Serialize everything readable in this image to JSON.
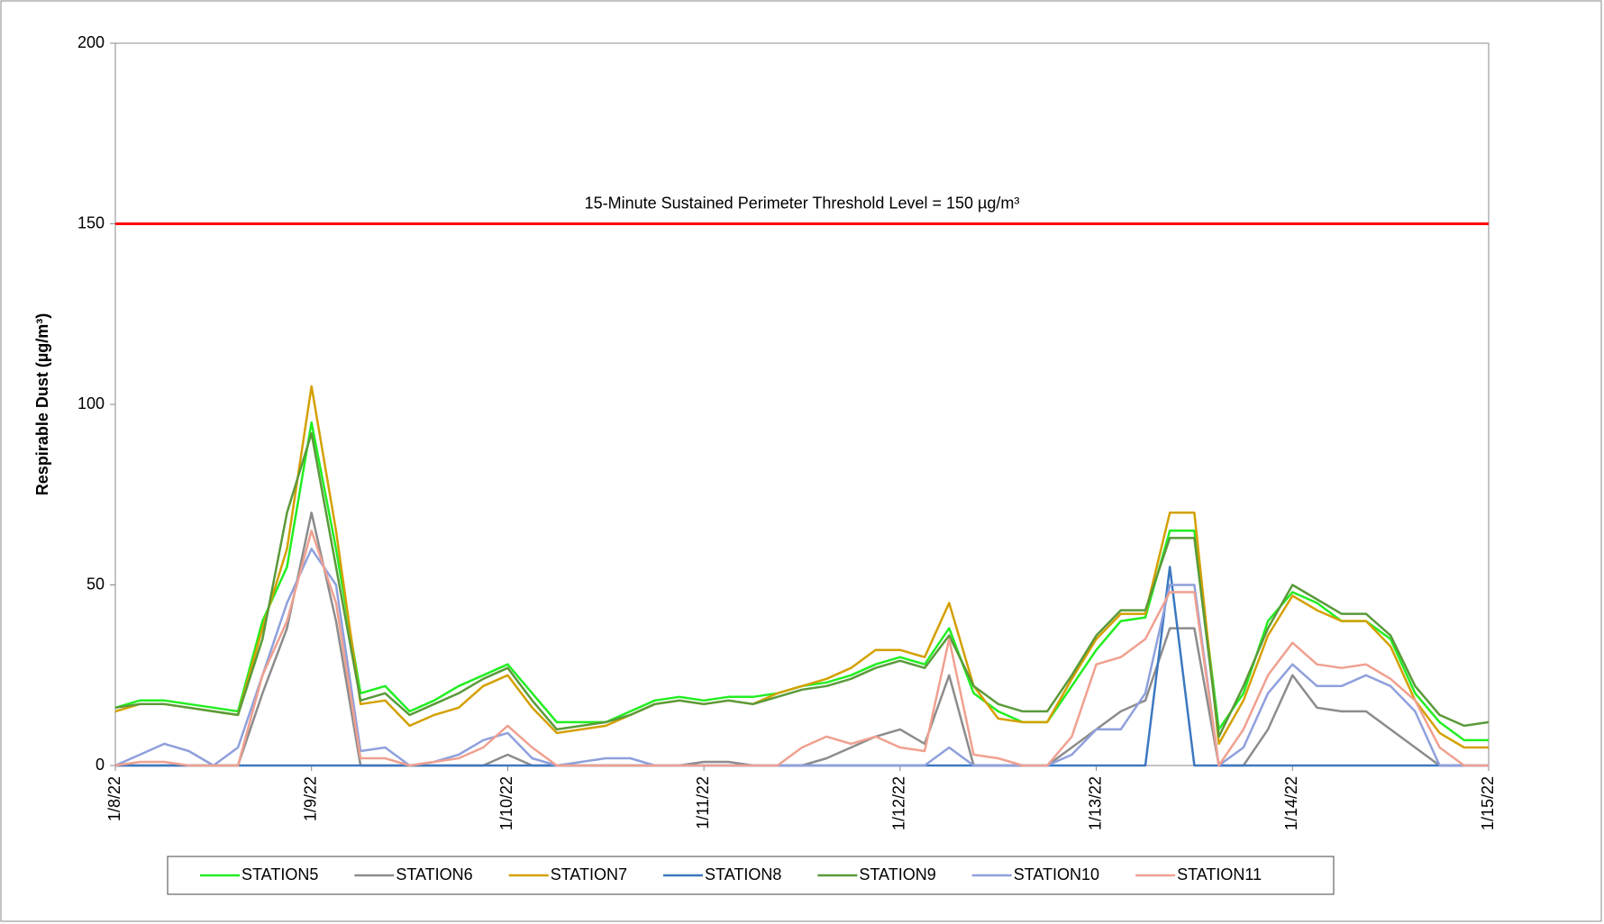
{
  "chart_data": {
    "type": "line",
    "y_label": "Respirable Dust (µg/m³)",
    "threshold": {
      "value": 150,
      "label": "15-Minute Sustained Perimeter Threshold Level = 150 µg/m³",
      "color": "#ff0000"
    },
    "ylim": [
      0,
      200
    ],
    "yticks": [
      0,
      50,
      100,
      150,
      200
    ],
    "categories": [
      "1/8/22",
      null,
      null,
      null,
      null,
      null,
      null,
      null,
      "1/9/22",
      null,
      null,
      null,
      null,
      null,
      null,
      null,
      "1/10/22",
      null,
      null,
      null,
      null,
      null,
      null,
      null,
      "1/11/22",
      null,
      null,
      null,
      null,
      null,
      null,
      null,
      "1/12/22",
      null,
      null,
      null,
      null,
      null,
      null,
      null,
      "1/13/22",
      null,
      null,
      null,
      null,
      null,
      null,
      null,
      "1/14/22",
      null,
      null,
      null,
      null,
      null,
      null,
      null,
      "1/15/22"
    ],
    "series": [
      {
        "name": "STATION5",
        "color": "#22ee22",
        "values": [
          16,
          18,
          18,
          17,
          16,
          15,
          40,
          55,
          95,
          60,
          20,
          22,
          15,
          18,
          22,
          25,
          28,
          20,
          12,
          12,
          12,
          15,
          18,
          19,
          18,
          19,
          19,
          20,
          22,
          23,
          25,
          28,
          30,
          28,
          38,
          20,
          15,
          12,
          12,
          22,
          32,
          40,
          41,
          65,
          65,
          10,
          20,
          40,
          48,
          45,
          40,
          40,
          35,
          20,
          12,
          7,
          7
        ]
      },
      {
        "name": "STATION6",
        "color": "#8c8c8c",
        "values": [
          0,
          0,
          0,
          0,
          0,
          0,
          20,
          38,
          70,
          40,
          0,
          0,
          0,
          0,
          0,
          0,
          3,
          0,
          0,
          0,
          0,
          0,
          0,
          0,
          1,
          1,
          0,
          0,
          0,
          2,
          5,
          8,
          10,
          6,
          25,
          0,
          0,
          0,
          0,
          5,
          10,
          15,
          18,
          38,
          38,
          0,
          0,
          10,
          25,
          16,
          15,
          15,
          10,
          5,
          0,
          0,
          0
        ]
      },
      {
        "name": "STATION7",
        "color": "#d4a000",
        "values": [
          15,
          17,
          17,
          16,
          15,
          14,
          38,
          60,
          105,
          65,
          17,
          18,
          11,
          14,
          16,
          22,
          25,
          16,
          9,
          10,
          11,
          14,
          17,
          18,
          17,
          18,
          17,
          20,
          22,
          24,
          27,
          32,
          32,
          30,
          45,
          22,
          13,
          12,
          12,
          24,
          35,
          42,
          42,
          70,
          70,
          6,
          18,
          36,
          47,
          43,
          40,
          40,
          33,
          18,
          9,
          5,
          5
        ]
      },
      {
        "name": "STATION8",
        "color": "#3c78c0",
        "values": [
          0,
          0,
          0,
          0,
          0,
          0,
          0,
          0,
          0,
          0,
          0,
          0,
          0,
          0,
          0,
          0,
          0,
          0,
          0,
          0,
          0,
          0,
          0,
          0,
          0,
          0,
          0,
          0,
          0,
          0,
          0,
          0,
          0,
          0,
          0,
          0,
          0,
          0,
          0,
          0,
          0,
          0,
          0,
          55,
          0,
          0,
          0,
          0,
          0,
          0,
          0,
          0,
          0,
          0,
          0,
          0,
          0
        ]
      },
      {
        "name": "STATION9",
        "color": "#5a9a3a",
        "values": [
          16,
          17,
          17,
          16,
          15,
          14,
          35,
          70,
          92,
          55,
          18,
          20,
          14,
          17,
          20,
          24,
          27,
          18,
          10,
          11,
          12,
          14,
          17,
          18,
          17,
          18,
          17,
          19,
          21,
          22,
          24,
          27,
          29,
          27,
          36,
          22,
          17,
          15,
          15,
          25,
          36,
          43,
          43,
          63,
          63,
          8,
          22,
          38,
          50,
          46,
          42,
          42,
          36,
          22,
          14,
          11,
          12
        ]
      },
      {
        "name": "STATION10",
        "color": "#8fa0dc",
        "values": [
          0,
          3,
          6,
          4,
          0,
          5,
          25,
          45,
          60,
          50,
          4,
          5,
          0,
          1,
          3,
          7,
          9,
          2,
          0,
          1,
          2,
          2,
          0,
          0,
          0,
          0,
          0,
          0,
          0,
          0,
          0,
          0,
          0,
          0,
          5,
          0,
          0,
          0,
          0,
          3,
          10,
          10,
          20,
          50,
          50,
          0,
          5,
          20,
          28,
          22,
          22,
          25,
          22,
          15,
          0,
          0,
          0
        ]
      },
      {
        "name": "STATION11",
        "color": "#f0a090",
        "values": [
          0,
          1,
          1,
          0,
          0,
          0,
          25,
          40,
          65,
          45,
          2,
          2,
          0,
          1,
          2,
          5,
          11,
          5,
          0,
          0,
          0,
          0,
          0,
          0,
          0,
          0,
          0,
          0,
          5,
          8,
          6,
          8,
          5,
          4,
          35,
          3,
          2,
          0,
          0,
          8,
          28,
          30,
          35,
          48,
          48,
          0,
          10,
          25,
          34,
          28,
          27,
          28,
          24,
          18,
          5,
          0,
          0
        ]
      }
    ]
  }
}
